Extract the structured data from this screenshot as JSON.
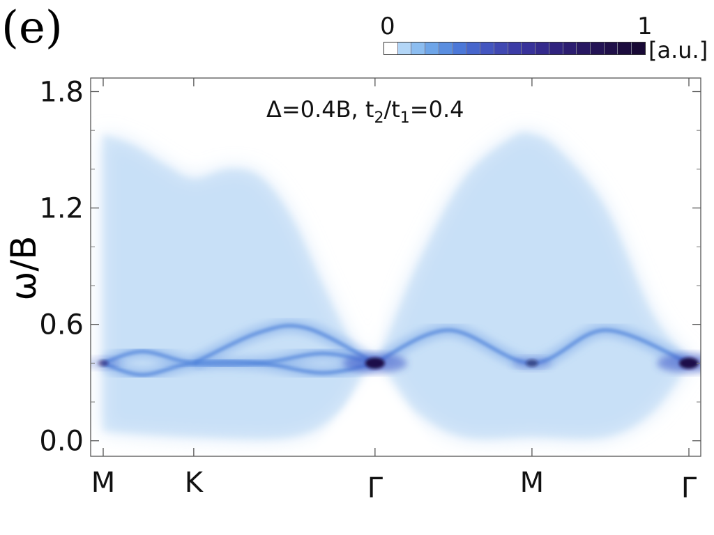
{
  "panel_label": "(e)",
  "colorbar": {
    "min_label": "0",
    "max_label": "1",
    "unit": "[a.u.]",
    "colors": [
      "#ffffff",
      "#b3d6f7",
      "#8cbdf0",
      "#6ea5e8",
      "#5a8ee0",
      "#4c78d8",
      "#4766cc",
      "#4456c0",
      "#4048b2",
      "#3c3ca6",
      "#38329a",
      "#342a8c",
      "#30237e",
      "#2c1d70",
      "#281862",
      "#241455",
      "#201049",
      "#1c0c3e",
      "#180935"
    ]
  },
  "chart_data": {
    "type": "heatmap",
    "title": "",
    "xlabel": "",
    "ylabel": "ω/B",
    "annotation": {
      "prefix": "Δ=0.4B, t",
      "sub1": "2",
      "mid": "/t",
      "sub2": "1",
      "suffix": "=0.4"
    },
    "xticks": [
      {
        "label": "M",
        "pos": 0
      },
      {
        "label": "K",
        "pos": 0.577
      },
      {
        "label": "Γ",
        "pos": 1.732
      },
      {
        "label": "M",
        "pos": 2.732
      },
      {
        "label": "Γ",
        "pos": 3.732
      }
    ],
    "xlim": [
      0,
      3.732
    ],
    "yticks": [
      0.0,
      0.6,
      1.2,
      1.8
    ],
    "ytick_labels": [
      "0.0",
      "0.6",
      "1.2",
      "1.8"
    ],
    "ylim": [
      -0.08,
      1.87
    ],
    "continuum_upper_edge": {
      "x": [
        0,
        0.2,
        0.4,
        0.577,
        0.8,
        1.0,
        1.2,
        1.4,
        1.6,
        1.732,
        2.0,
        2.3,
        2.6,
        2.732,
        2.9,
        3.2,
        3.5,
        3.732
      ],
      "y": [
        1.58,
        1.52,
        1.42,
        1.35,
        1.4,
        1.36,
        1.15,
        0.8,
        0.48,
        0.4,
        0.9,
        1.35,
        1.56,
        1.58,
        1.5,
        1.2,
        0.65,
        0.42
      ]
    },
    "continuum_lower_edge": {
      "x": [
        0,
        0.577,
        1.2,
        1.5,
        1.732,
        2.0,
        2.3,
        2.732,
        3.2,
        3.5,
        3.732
      ],
      "y": [
        0.05,
        0.02,
        0.02,
        0.15,
        0.4,
        0.15,
        0.02,
        0.02,
        0.02,
        0.15,
        0.4
      ]
    },
    "bands": [
      {
        "name": "",
        "x": [
          0,
          0.25,
          0.577,
          1.0,
          1.4,
          1.732
        ],
        "y": [
          0.4,
          0.46,
          0.4,
          0.4,
          0.45,
          0.4
        ]
      },
      {
        "name": "",
        "x": [
          0,
          0.25,
          0.577,
          1.0,
          1.4,
          1.732
        ],
        "y": [
          0.4,
          0.34,
          0.4,
          0.4,
          0.35,
          0.4
        ]
      },
      {
        "name": "",
        "x": [
          1.732,
          2.2,
          2.732,
          3.2,
          3.732
        ],
        "y": [
          0.4,
          0.57,
          0.4,
          0.57,
          0.4
        ]
      },
      {
        "name": "",
        "x": [
          0.577,
          1.0,
          1.3,
          1.732
        ],
        "y": [
          0.4,
          0.56,
          0.58,
          0.4
        ]
      },
      {
        "name": "",
        "x": [
          1.732,
          3.732
        ],
        "y": [
          0.4,
          0.4
        ]
      }
    ],
    "intensity_peaks": [
      {
        "x": 1.732,
        "y": 0.4,
        "value": 1.0
      },
      {
        "x": 3.732,
        "y": 0.4,
        "value": 1.0
      },
      {
        "x": 2.732,
        "y": 0.4,
        "value": 0.55
      },
      {
        "x": 0.0,
        "y": 0.4,
        "value": 0.45
      }
    ],
    "grid": false,
    "legend": "colorbar top-right"
  }
}
